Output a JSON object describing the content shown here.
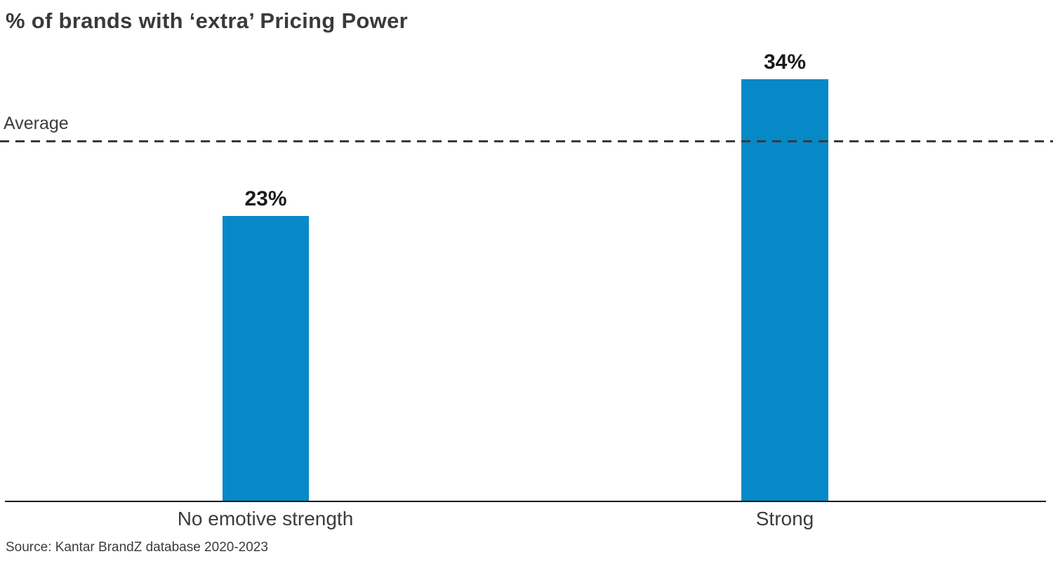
{
  "chart_data": {
    "type": "bar",
    "title": "% of brands with ‘extra’ Pricing Power",
    "categories": [
      "No emotive strength",
      "Strong"
    ],
    "values": [
      23,
      34
    ],
    "value_labels": [
      "23%",
      "34%"
    ],
    "average_line": {
      "label": "Average",
      "value": 29
    },
    "source": "Source: Kantar BrandZ database 2020-2023",
    "xlabel": "",
    "ylabel": "",
    "ylim": [
      0,
      40
    ],
    "grid": false,
    "legend": false,
    "bar_color": "#0789C7"
  },
  "colors": {
    "bar": "#0789C7",
    "title_text": "#3A3A3A",
    "value_text": "#1A1A1A",
    "label_text": "#3C3C3C",
    "axis_line": "#1A1A1A",
    "dashed_line": "#3A3A3A",
    "background": "#FFFFFF"
  }
}
